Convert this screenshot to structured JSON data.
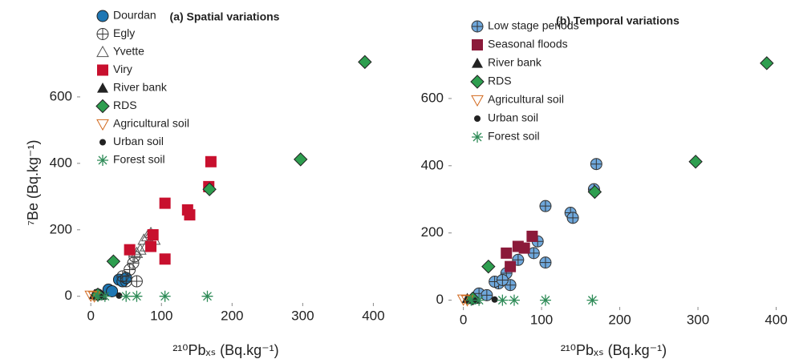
{
  "chart_data": [
    {
      "type": "scatter",
      "title": "(a) Spatial variations",
      "x_label": "²¹⁰Pbₓₛ (Bq.kg⁻¹)",
      "y_label": "⁷Be (Bq.kg⁻¹)",
      "xlim": [
        -15,
        420
      ],
      "ylim": [
        -20,
        800
      ],
      "xticks": [
        0,
        100,
        200,
        300,
        400
      ],
      "yticks": [
        0,
        200,
        400,
        600
      ],
      "legend": "top-left",
      "series": [
        {
          "name": "Dourdan",
          "color": "#1f77b4",
          "marker": "circle",
          "x": [
            25,
            40,
            45,
            50,
            10,
            30
          ],
          "y": [
            20,
            50,
            45,
            55,
            5,
            15
          ]
        },
        {
          "name": "Egly",
          "color": "#555555",
          "marker": "circle-cross",
          "x": [
            55,
            60,
            65,
            50,
            45,
            62
          ],
          "y": [
            80,
            100,
            45,
            45,
            60,
            120
          ]
        },
        {
          "name": "Yvette",
          "color": "#555555",
          "marker": "triangle-open",
          "x": [
            70,
            75,
            80,
            85,
            90,
            78,
            65
          ],
          "y": [
            140,
            170,
            180,
            190,
            170,
            150,
            130
          ]
        },
        {
          "name": "Viry",
          "color": "#c8102e",
          "marker": "square",
          "x": [
            170,
            167,
            137,
            140,
            105,
            105,
            85,
            55,
            88
          ],
          "y": [
            405,
            330,
            260,
            245,
            280,
            112,
            150,
            140,
            185
          ]
        },
        {
          "name": "River bank",
          "color": "#222222",
          "marker": "triangle",
          "x": [
            5,
            10,
            15
          ],
          "y": [
            5,
            2,
            3
          ]
        },
        {
          "name": "RDS",
          "color": "#2e9e4f",
          "marker": "diamond",
          "x": [
            388,
            297,
            168,
            32,
            10
          ],
          "y": [
            705,
            412,
            322,
            105,
            5
          ]
        },
        {
          "name": "Agricultural soil",
          "color": "#d2691e",
          "marker": "triangle-down-open",
          "x": [
            0,
            5
          ],
          "y": [
            2,
            0
          ]
        },
        {
          "name": "Urban soil",
          "color": "#222222",
          "marker": "dot",
          "x": [
            40,
            15
          ],
          "y": [
            2,
            0
          ]
        },
        {
          "name": "Forest soil",
          "color": "#2e8b57",
          "marker": "asterisk",
          "x": [
            165,
            105,
            65,
            50,
            10,
            20
          ],
          "y": [
            0,
            0,
            0,
            0,
            0,
            0
          ]
        }
      ]
    },
    {
      "type": "scatter",
      "title": "(b) Temporal variations",
      "x_label": "²¹⁰Pbₓₛ (Bq.kg⁻¹)",
      "xlim": [
        -15,
        420
      ],
      "ylim": [
        -20,
        800
      ],
      "xticks": [
        0,
        100,
        200,
        300,
        400
      ],
      "yticks": [
        0,
        200,
        400,
        600
      ],
      "legend": "top-left",
      "series": [
        {
          "name": "Low stage periods",
          "color": "#6fa8dc",
          "marker": "circle-cross",
          "x": [
            170,
            167,
            137,
            140,
            105,
            105,
            95,
            90,
            70,
            55,
            60,
            45,
            40,
            20,
            50,
            30
          ],
          "y": [
            405,
            330,
            260,
            245,
            280,
            112,
            175,
            140,
            120,
            80,
            45,
            50,
            55,
            20,
            60,
            15
          ]
        },
        {
          "name": "Seasonal floods",
          "color": "#8b1a3a",
          "marker": "square",
          "x": [
            88,
            78,
            55,
            60,
            70
          ],
          "y": [
            190,
            155,
            140,
            100,
            160
          ]
        },
        {
          "name": "River bank",
          "color": "#222222",
          "marker": "triangle",
          "x": [
            5,
            10,
            15
          ],
          "y": [
            5,
            2,
            3
          ]
        },
        {
          "name": "RDS",
          "color": "#2e9e4f",
          "marker": "diamond",
          "x": [
            388,
            297,
            168,
            32,
            12
          ],
          "y": [
            705,
            412,
            322,
            100,
            5
          ]
        },
        {
          "name": "Agricultural soil",
          "color": "#d2691e",
          "marker": "triangle-down-open",
          "x": [
            0,
            5
          ],
          "y": [
            2,
            0
          ]
        },
        {
          "name": "Urban soil",
          "color": "#222222",
          "marker": "dot",
          "x": [
            40,
            15
          ],
          "y": [
            2,
            0
          ]
        },
        {
          "name": "Forest soil",
          "color": "#2e8b57",
          "marker": "asterisk",
          "x": [
            165,
            105,
            65,
            50,
            10,
            20
          ],
          "y": [
            0,
            0,
            0,
            0,
            0,
            0
          ]
        }
      ]
    }
  ]
}
